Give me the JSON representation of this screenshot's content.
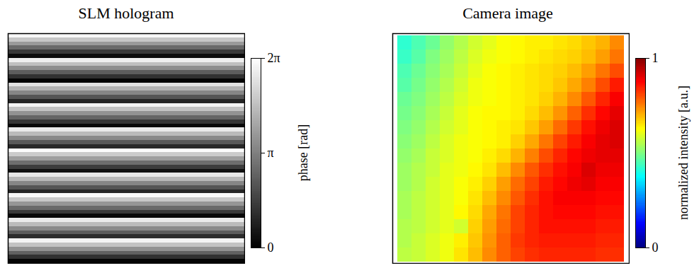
{
  "chart_data": [
    {
      "type": "heatmap",
      "title": "SLM hologram",
      "color": "gray",
      "tick_labels": false,
      "values": [
        [
          6.1
        ],
        [
          4.9
        ],
        [
          3.8
        ],
        [
          2.6
        ],
        [
          1.4
        ],
        [
          0.3
        ],
        [
          5.9
        ],
        [
          4.7
        ],
        [
          3.5
        ],
        [
          2.3
        ],
        [
          1.2
        ],
        [
          0.1
        ],
        [
          5.6
        ],
        [
          4.4
        ],
        [
          3.3
        ],
        [
          2.1
        ],
        [
          0.9
        ],
        [
          6.0
        ],
        [
          4.8
        ],
        [
          3.6
        ],
        [
          2.5
        ],
        [
          1.3
        ],
        [
          0.2
        ],
        [
          5.8
        ],
        [
          4.6
        ],
        [
          3.4
        ],
        [
          2.2
        ],
        [
          1.0
        ],
        [
          6.2
        ],
        [
          5.0
        ],
        [
          3.9
        ],
        [
          2.7
        ],
        [
          1.5
        ],
        [
          0.4
        ],
        [
          5.7
        ],
        [
          4.5
        ],
        [
          3.3
        ],
        [
          2.1
        ],
        [
          0.9
        ],
        [
          6.1
        ],
        [
          4.9
        ],
        [
          3.7
        ],
        [
          2.6
        ],
        [
          1.4
        ],
        [
          0.2
        ],
        [
          5.8
        ],
        [
          4.6
        ],
        [
          3.4
        ],
        [
          2.3
        ],
        [
          1.1
        ],
        [
          6.0
        ],
        [
          4.8
        ],
        [
          3.6
        ],
        [
          2.4
        ],
        [
          1.2
        ],
        [
          0.1
        ]
      ],
      "colorbar": {
        "label": "phase [rad]",
        "range": [
          0,
          6.2832
        ],
        "ticks": [
          0,
          {
            "value": 3.1416,
            "label": "π"
          },
          {
            "value": 6.2832,
            "label": "2π"
          }
        ]
      }
    },
    {
      "type": "heatmap",
      "title": "Camera image",
      "color": "jet",
      "tick_labels": false,
      "values": [
        [
          0.42,
          0.45,
          0.48,
          0.52,
          0.55,
          0.58,
          0.6,
          0.62,
          0.63,
          0.64,
          0.64,
          0.65,
          0.66,
          0.68,
          0.7,
          0.74
        ],
        [
          0.43,
          0.46,
          0.5,
          0.53,
          0.56,
          0.59,
          0.61,
          0.62,
          0.63,
          0.64,
          0.65,
          0.66,
          0.67,
          0.69,
          0.72,
          0.76
        ],
        [
          0.45,
          0.48,
          0.51,
          0.54,
          0.57,
          0.6,
          0.62,
          0.63,
          0.64,
          0.65,
          0.66,
          0.67,
          0.69,
          0.72,
          0.76,
          0.8
        ],
        [
          0.46,
          0.49,
          0.52,
          0.55,
          0.58,
          0.61,
          0.62,
          0.63,
          0.64,
          0.65,
          0.66,
          0.68,
          0.71,
          0.75,
          0.8,
          0.85
        ],
        [
          0.48,
          0.5,
          0.53,
          0.56,
          0.59,
          0.61,
          0.62,
          0.63,
          0.64,
          0.65,
          0.67,
          0.7,
          0.74,
          0.79,
          0.84,
          0.88
        ],
        [
          0.49,
          0.51,
          0.54,
          0.57,
          0.6,
          0.62,
          0.63,
          0.63,
          0.64,
          0.66,
          0.69,
          0.73,
          0.78,
          0.83,
          0.87,
          0.9
        ],
        [
          0.5,
          0.52,
          0.55,
          0.58,
          0.6,
          0.62,
          0.63,
          0.64,
          0.65,
          0.68,
          0.72,
          0.77,
          0.82,
          0.86,
          0.89,
          0.91
        ],
        [
          0.51,
          0.53,
          0.56,
          0.59,
          0.61,
          0.62,
          0.63,
          0.64,
          0.67,
          0.71,
          0.76,
          0.81,
          0.85,
          0.88,
          0.9,
          0.91
        ],
        [
          0.52,
          0.54,
          0.57,
          0.59,
          0.61,
          0.62,
          0.64,
          0.66,
          0.7,
          0.75,
          0.8,
          0.84,
          0.87,
          0.89,
          0.9,
          0.9
        ],
        [
          0.53,
          0.55,
          0.57,
          0.6,
          0.61,
          0.63,
          0.65,
          0.69,
          0.74,
          0.79,
          0.83,
          0.86,
          0.88,
          0.91,
          0.89,
          0.89
        ],
        [
          0.53,
          0.55,
          0.58,
          0.6,
          0.62,
          0.64,
          0.67,
          0.72,
          0.77,
          0.81,
          0.85,
          0.87,
          0.89,
          0.9,
          0.88,
          0.88
        ],
        [
          0.54,
          0.56,
          0.58,
          0.6,
          0.62,
          0.65,
          0.69,
          0.74,
          0.79,
          0.83,
          0.86,
          0.88,
          0.88,
          0.88,
          0.87,
          0.87
        ],
        [
          0.54,
          0.56,
          0.58,
          0.6,
          0.63,
          0.66,
          0.71,
          0.76,
          0.81,
          0.84,
          0.86,
          0.87,
          0.87,
          0.87,
          0.86,
          0.86
        ],
        [
          0.55,
          0.56,
          0.58,
          0.6,
          0.58,
          0.67,
          0.72,
          0.77,
          0.81,
          0.84,
          0.86,
          0.86,
          0.86,
          0.86,
          0.85,
          0.85
        ],
        [
          0.55,
          0.57,
          0.59,
          0.61,
          0.64,
          0.68,
          0.73,
          0.78,
          0.82,
          0.84,
          0.85,
          0.85,
          0.85,
          0.85,
          0.84,
          0.84
        ],
        [
          0.56,
          0.57,
          0.59,
          0.61,
          0.65,
          0.69,
          0.74,
          0.78,
          0.81,
          0.83,
          0.84,
          0.84,
          0.84,
          0.84,
          0.83,
          0.83
        ]
      ],
      "colorbar": {
        "label": "normalized intensity [a.u.]",
        "range": [
          0,
          1
        ],
        "ticks": [
          0,
          1
        ]
      }
    }
  ]
}
